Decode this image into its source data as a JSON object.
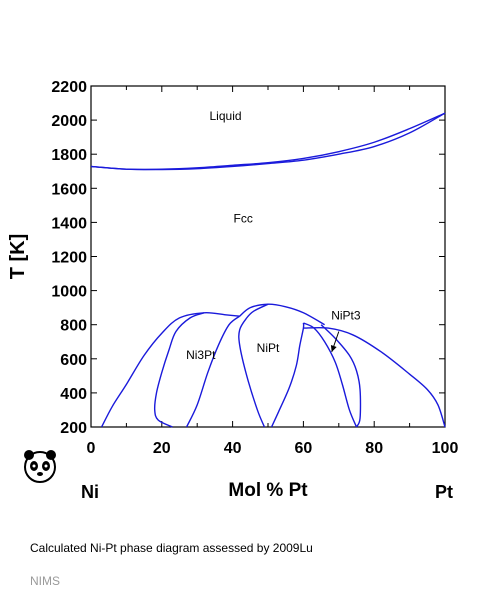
{
  "chart_data": {
    "type": "line",
    "ylabel": "T [K]",
    "xlabel": "Mol % Pt",
    "xlim": [
      0,
      100
    ],
    "ylim": [
      200,
      2200
    ],
    "x_ticks": [
      "0",
      "20",
      "40",
      "60",
      "80",
      "100"
    ],
    "y_ticks": [
      "200",
      "400",
      "600",
      "800",
      "1000",
      "1200",
      "1400",
      "1600",
      "1800",
      "2000",
      "2200"
    ],
    "phase_labels": [
      {
        "text": "Liquid",
        "x": 38,
        "y": 2000
      },
      {
        "text": "Fcc",
        "x": 43,
        "y": 1400
      },
      {
        "text": "Ni3Pt",
        "x": 31,
        "y": 600
      },
      {
        "text": "NiPt",
        "x": 50,
        "y": 640
      },
      {
        "text": "NiPt3",
        "x": 72,
        "y": 830
      }
    ],
    "series": [
      {
        "role": "liquidus",
        "points": [
          [
            0,
            1728
          ],
          [
            10,
            1712
          ],
          [
            20,
            1712
          ],
          [
            30,
            1720
          ],
          [
            40,
            1735
          ],
          [
            50,
            1750
          ],
          [
            60,
            1775
          ],
          [
            70,
            1815
          ],
          [
            80,
            1870
          ],
          [
            90,
            1950
          ],
          [
            100,
            2041
          ]
        ]
      },
      {
        "role": "solidus",
        "points": [
          [
            0,
            1728
          ],
          [
            10,
            1712
          ],
          [
            20,
            1710
          ],
          [
            30,
            1715
          ],
          [
            40,
            1728
          ],
          [
            50,
            1745
          ],
          [
            60,
            1765
          ],
          [
            70,
            1800
          ],
          [
            80,
            1845
          ],
          [
            90,
            1925
          ],
          [
            100,
            2041
          ]
        ]
      },
      {
        "role": "Ni3Pt-dome",
        "points": [
          [
            3,
            200
          ],
          [
            6,
            320
          ],
          [
            10,
            450
          ],
          [
            15,
            620
          ],
          [
            20,
            750
          ],
          [
            25,
            840
          ],
          [
            32,
            870
          ],
          [
            38,
            858
          ],
          [
            42,
            850
          ]
        ]
      },
      {
        "role": "Ni3Pt-left",
        "points": [
          [
            23,
            200
          ],
          [
            19,
            240
          ],
          [
            18,
            300
          ],
          [
            18.5,
            400
          ],
          [
            20,
            520
          ],
          [
            22,
            650
          ],
          [
            24,
            760
          ],
          [
            28,
            840
          ],
          [
            32,
            870
          ]
        ]
      },
      {
        "role": "Ni3Pt-right",
        "points": [
          [
            27,
            200
          ],
          [
            30,
            330
          ],
          [
            33,
            520
          ],
          [
            36,
            680
          ],
          [
            39,
            800
          ],
          [
            42,
            850
          ]
        ]
      },
      {
        "role": "NiPt-dome",
        "points": [
          [
            42,
            850
          ],
          [
            45,
            900
          ],
          [
            50,
            920
          ],
          [
            55,
            905
          ],
          [
            60,
            870
          ],
          [
            66,
            800
          ]
        ]
      },
      {
        "role": "NiPt-left",
        "points": [
          [
            49,
            200
          ],
          [
            47,
            300
          ],
          [
            44,
            500
          ],
          [
            42,
            680
          ],
          [
            42,
            770
          ],
          [
            44,
            840
          ],
          [
            46,
            880
          ],
          [
            50,
            920
          ]
        ]
      },
      {
        "role": "NiPt-right",
        "points": [
          [
            51,
            200
          ],
          [
            53,
            290
          ],
          [
            56,
            430
          ],
          [
            58,
            560
          ],
          [
            59,
            680
          ],
          [
            60,
            780
          ],
          [
            60,
            810
          ]
        ]
      },
      {
        "role": "NiPt3-left",
        "points": [
          [
            60,
            810
          ],
          [
            63,
            780
          ],
          [
            66,
            700
          ],
          [
            69,
            580
          ],
          [
            71,
            450
          ],
          [
            73,
            300
          ],
          [
            75,
            200
          ]
        ]
      },
      {
        "role": "NiPt3-right",
        "points": [
          [
            65,
            800
          ],
          [
            69,
            720
          ],
          [
            73,
            620
          ],
          [
            75,
            530
          ],
          [
            76,
            420
          ],
          [
            76,
            250
          ],
          [
            75,
            200
          ]
        ]
      },
      {
        "role": "Pt-fcc-boundary",
        "points": [
          [
            60,
            780
          ],
          [
            67,
            780
          ],
          [
            74,
            740
          ],
          [
            82,
            640
          ],
          [
            90,
            510
          ],
          [
            95,
            420
          ],
          [
            98,
            330
          ],
          [
            100,
            200
          ]
        ]
      }
    ],
    "annotation_arrow": {
      "from": [
        70,
        760
      ],
      "to": [
        68,
        640
      ]
    },
    "line_color": "#1a1adb"
  },
  "labels": {
    "left_element": "Ni",
    "right_element": "Pt",
    "caption": "Calculated Ni-Pt phase diagram assessed by 2009Lu",
    "credit": "NIMS"
  }
}
